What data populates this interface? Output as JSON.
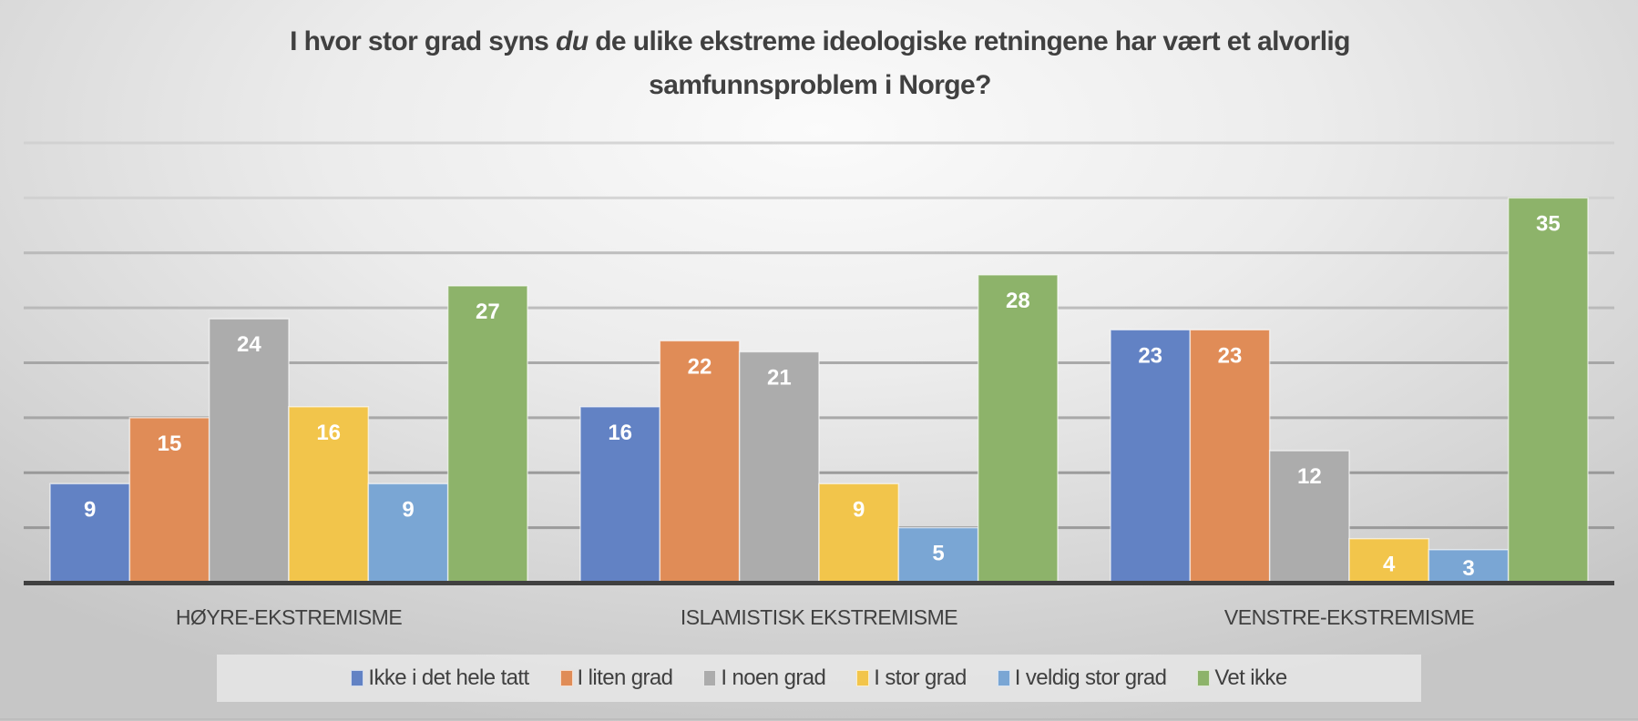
{
  "chart_data": {
    "type": "bar",
    "title_parts": [
      "I hvor stor grad syns ",
      "du",
      " de ulike ekstreme ideologiske retningene har vært et alvorlig",
      "samfunnsproblem i Norge?"
    ],
    "categories": [
      "HØYRE-EKSTREMISME",
      "ISLAMISTISK EKSTREMISME",
      "VENSTRE-EKSTREMISME"
    ],
    "series": [
      {
        "name": "Ikke i det hele tatt",
        "color": "#6282c4",
        "values": [
          9,
          16,
          23
        ]
      },
      {
        "name": "I liten grad",
        "color": "#e08c57",
        "values": [
          15,
          22,
          23
        ]
      },
      {
        "name": "I noen grad",
        "color": "#acacac",
        "values": [
          24,
          21,
          12
        ]
      },
      {
        "name": "I stor grad",
        "color": "#f2c54b",
        "values": [
          16,
          9,
          4
        ]
      },
      {
        "name": "I veldig stor grad",
        "color": "#7aa6d4",
        "values": [
          9,
          5,
          3
        ]
      },
      {
        "name": "Vet ikke",
        "color": "#8db36a",
        "values": [
          27,
          28,
          35
        ]
      }
    ],
    "xlabel": "",
    "ylabel": "",
    "ylim": [
      0,
      40
    ],
    "gridline_step": 5,
    "grid": true,
    "data_labels": true,
    "legend_position": "bottom"
  }
}
